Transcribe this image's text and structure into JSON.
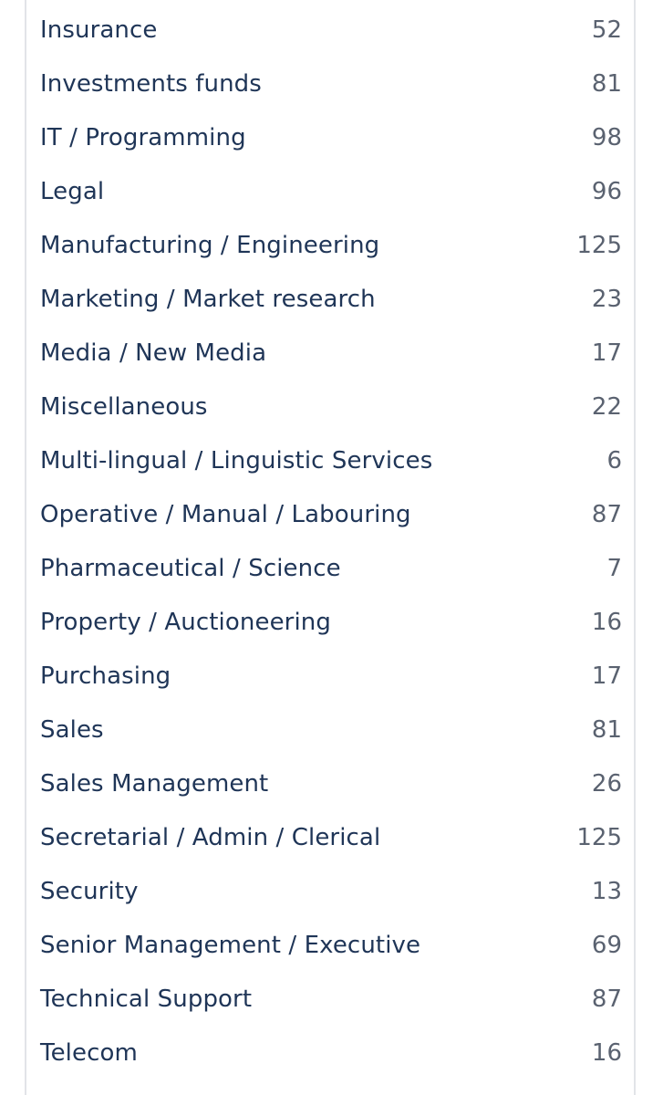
{
  "categories": [
    {
      "name": "Insurance",
      "count": "52"
    },
    {
      "name": "Investments funds",
      "count": "81"
    },
    {
      "name": "IT / Programming",
      "count": "98"
    },
    {
      "name": "Legal",
      "count": "96"
    },
    {
      "name": "Manufacturing / Engineering",
      "count": "125"
    },
    {
      "name": "Marketing / Market research",
      "count": "23"
    },
    {
      "name": "Media / New Media",
      "count": "17"
    },
    {
      "name": "Miscellaneous",
      "count": "22"
    },
    {
      "name": "Multi-lingual / Linguistic Services",
      "count": "6"
    },
    {
      "name": "Operative / Manual / Labouring",
      "count": "87"
    },
    {
      "name": "Pharmaceutical / Science",
      "count": "7"
    },
    {
      "name": "Property / Auctioneering",
      "count": "16"
    },
    {
      "name": "Purchasing",
      "count": "17"
    },
    {
      "name": "Sales",
      "count": "81"
    },
    {
      "name": "Sales Management",
      "count": "26"
    },
    {
      "name": "Secretarial / Admin / Clerical",
      "count": "125"
    },
    {
      "name": "Security",
      "count": "13"
    },
    {
      "name": "Senior Management / Executive",
      "count": "69"
    },
    {
      "name": "Technical Support",
      "count": "87"
    },
    {
      "name": "Telecom",
      "count": "16"
    }
  ]
}
